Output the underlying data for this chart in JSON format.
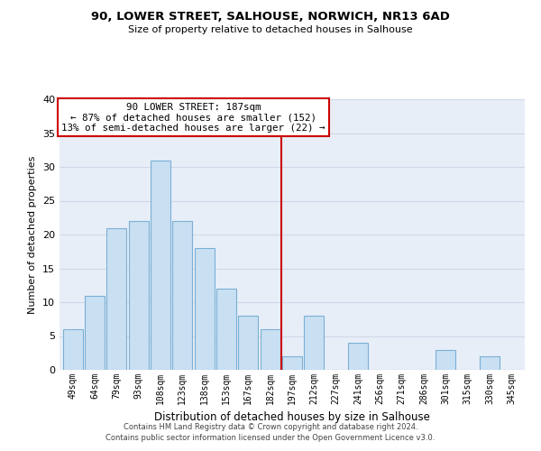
{
  "title": "90, LOWER STREET, SALHOUSE, NORWICH, NR13 6AD",
  "subtitle": "Size of property relative to detached houses in Salhouse",
  "xlabel": "Distribution of detached houses by size in Salhouse",
  "ylabel": "Number of detached properties",
  "bar_labels": [
    "49sqm",
    "64sqm",
    "79sqm",
    "93sqm",
    "108sqm",
    "123sqm",
    "138sqm",
    "153sqm",
    "167sqm",
    "182sqm",
    "197sqm",
    "212sqm",
    "227sqm",
    "241sqm",
    "256sqm",
    "271sqm",
    "286sqm",
    "301sqm",
    "315sqm",
    "330sqm",
    "345sqm"
  ],
  "bar_values": [
    6,
    11,
    21,
    22,
    31,
    22,
    18,
    12,
    8,
    6,
    2,
    8,
    0,
    4,
    0,
    0,
    0,
    3,
    0,
    2,
    0
  ],
  "bar_color": "#c9dff2",
  "bar_edge_color": "#7ab0d4",
  "reference_line_x_label": "197sqm",
  "reference_line_color": "#cc0000",
  "annotation_text": "90 LOWER STREET: 187sqm\n← 87% of detached houses are smaller (152)\n13% of semi-detached houses are larger (22) →",
  "annotation_box_edge_color": "#cc0000",
  "ylim": [
    0,
    40
  ],
  "yticks": [
    0,
    5,
    10,
    15,
    20,
    25,
    30,
    35,
    40
  ],
  "grid_color": "#d0d8e8",
  "background_color": "#e8eef8",
  "footer_line1": "Contains HM Land Registry data © Crown copyright and database right 2024.",
  "footer_line2": "Contains public sector information licensed under the Open Government Licence v3.0."
}
